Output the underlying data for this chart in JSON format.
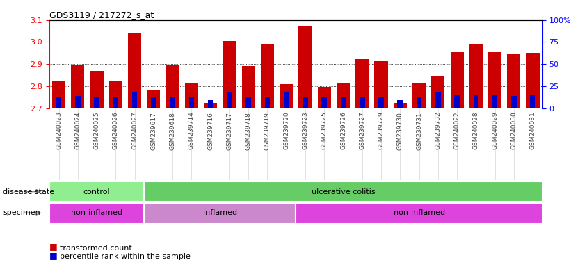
{
  "title": "GDS3119 / 217272_s_at",
  "samples": [
    "GSM240023",
    "GSM240024",
    "GSM240025",
    "GSM240026",
    "GSM240027",
    "GSM239617",
    "GSM239618",
    "GSM239714",
    "GSM239716",
    "GSM239717",
    "GSM239718",
    "GSM239719",
    "GSM239720",
    "GSM239723",
    "GSM239725",
    "GSM239726",
    "GSM239727",
    "GSM239729",
    "GSM239730",
    "GSM239731",
    "GSM239732",
    "GSM240022",
    "GSM240028",
    "GSM240029",
    "GSM240030",
    "GSM240031"
  ],
  "red_values": [
    2.825,
    2.895,
    2.868,
    2.825,
    3.04,
    2.785,
    2.895,
    2.815,
    2.725,
    3.005,
    2.89,
    2.993,
    2.808,
    3.07,
    2.797,
    2.812,
    2.922,
    2.912,
    2.725,
    2.815,
    2.845,
    2.955,
    2.993,
    2.953,
    2.948,
    2.952
  ],
  "blue_values": [
    2.752,
    2.754,
    2.748,
    2.752,
    2.773,
    2.748,
    2.751,
    2.748,
    2.737,
    2.773,
    2.752,
    2.752,
    2.773,
    2.752,
    2.748,
    2.752,
    2.752,
    2.752,
    2.737,
    2.752,
    2.773,
    2.76,
    2.76,
    2.76,
    2.755,
    2.76
  ],
  "y_min": 2.7,
  "y_max": 3.1,
  "y_ticks": [
    2.7,
    2.8,
    2.9,
    3.0,
    3.1
  ],
  "y2_ticks": [
    0,
    25,
    50,
    75,
    100
  ],
  "bar_color": "#cc0000",
  "blue_color": "#0000cc",
  "disease_state": [
    {
      "label": "control",
      "start": 0,
      "end": 5,
      "color": "#90ee90"
    },
    {
      "label": "ulcerative colitis",
      "start": 5,
      "end": 26,
      "color": "#66cc66"
    }
  ],
  "specimen": [
    {
      "label": "non-inflamed",
      "start": 0,
      "end": 5,
      "color": "#dd44dd"
    },
    {
      "label": "inflamed",
      "start": 5,
      "end": 13,
      "color": "#cc88cc"
    },
    {
      "label": "non-inflamed",
      "start": 13,
      "end": 26,
      "color": "#dd44dd"
    }
  ],
  "label_disease": "disease state",
  "label_specimen": "specimen",
  "legend_items": [
    "transformed count",
    "percentile rank within the sample"
  ]
}
